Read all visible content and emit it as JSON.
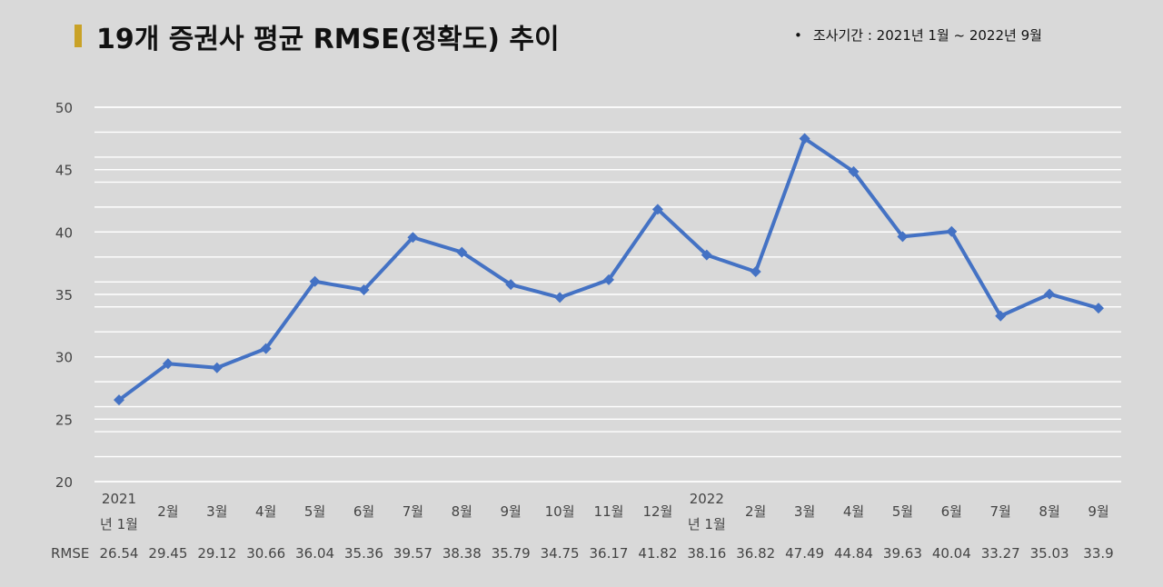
{
  "header": {
    "title": "19개 증권사 평균 RMSE(정확도) 추이",
    "period_bullet": "•",
    "period": "조사기간 : 2021년 1월 ~ 2022년 9월"
  },
  "chart_data": {
    "type": "line",
    "title": "19개 증권사 평균 RMSE(정확도) 추이",
    "categories": [
      [
        "2021",
        "년 1월"
      ],
      [
        "2월"
      ],
      [
        "3월"
      ],
      [
        "4월"
      ],
      [
        "5월"
      ],
      [
        "6월"
      ],
      [
        "7월"
      ],
      [
        "8월"
      ],
      [
        "9월"
      ],
      [
        "10월"
      ],
      [
        "11월"
      ],
      [
        "12월"
      ],
      [
        "2022",
        "년 1월"
      ],
      [
        "2월"
      ],
      [
        "3월"
      ],
      [
        "4월"
      ],
      [
        "5월"
      ],
      [
        "6월"
      ],
      [
        "7월"
      ],
      [
        "8월"
      ],
      [
        "9월"
      ]
    ],
    "series": [
      {
        "name": "RMSE",
        "values": [
          26.54,
          29.45,
          29.12,
          30.66,
          36.04,
          35.36,
          39.57,
          38.38,
          35.79,
          34.75,
          36.17,
          41.82,
          38.16,
          36.82,
          47.49,
          44.84,
          39.63,
          40.04,
          33.27,
          35.03,
          33.9
        ],
        "value_labels": [
          "26.54",
          "29.45",
          "29.12",
          "30.66",
          "36.04",
          "35.36",
          "39.57",
          "38.38",
          "35.79",
          "34.75",
          "36.17",
          "41.82",
          "38.16",
          "36.82",
          "47.49",
          "44.84",
          "39.63",
          "40.04",
          "33.27",
          "35.03",
          "33.9"
        ]
      }
    ],
    "table_row_label": "RMSE",
    "ylim": [
      20,
      50
    ],
    "yticks": [
      "20",
      "25",
      "30",
      "35",
      "40",
      "45",
      "50"
    ],
    "grid": true,
    "line_color": "#4472c4",
    "marker": "diamond"
  }
}
